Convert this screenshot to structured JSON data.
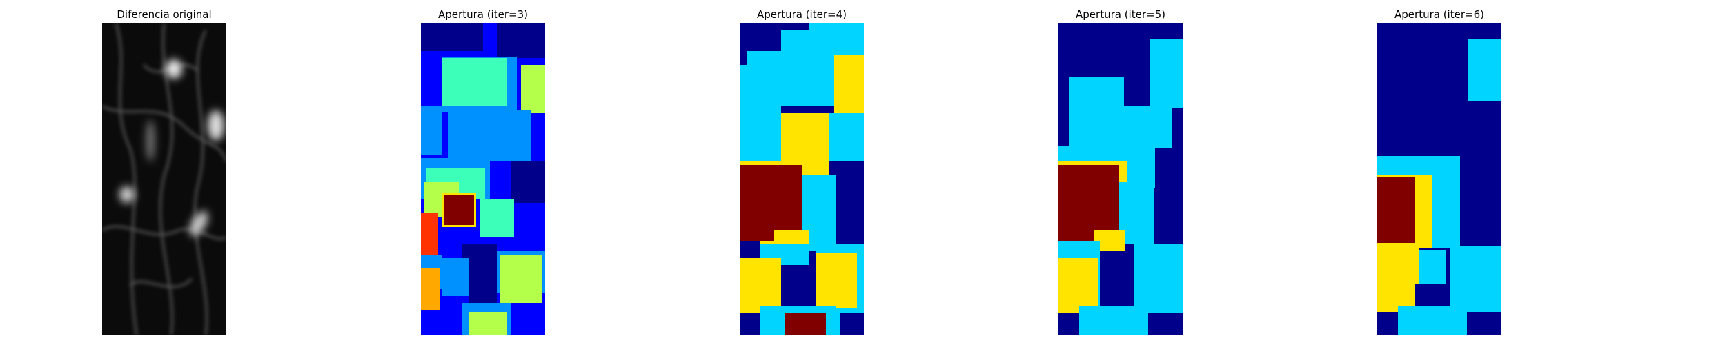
{
  "panels": [
    {
      "title": "Diferencia original"
    },
    {
      "title": "Apertura (iter=3)"
    },
    {
      "title": "Apertura (iter=4)"
    },
    {
      "title": "Apertura (iter=5)"
    },
    {
      "title": "Apertura (iter=6)"
    }
  ],
  "colors": {
    "dark_navy": "#00008b",
    "blue": "#0000ff",
    "azure": "#0091ff",
    "cyan": "#00d4ff",
    "aquamarine": "#3cffb9",
    "yellow_green": "#b3ff4a",
    "yellow": "#ffe400",
    "orange": "#ffa800",
    "red": "#ff3300",
    "dark_red": "#800000"
  }
}
